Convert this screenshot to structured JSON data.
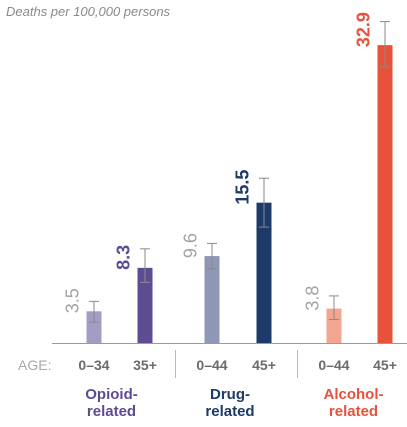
{
  "chart_data": {
    "type": "bar",
    "title": "",
    "unit_label": "Deaths per 100,000 persons",
    "axis_prefix": "AGE:",
    "ylim": [
      0,
      37
    ],
    "grid": false,
    "groups": [
      {
        "name": "Opioid-related",
        "name_lines": [
          "Opioid-",
          "related"
        ],
        "color": "#5d4c91",
        "bars": [
          {
            "age": "0–34",
            "value": 3.5,
            "value_label": "3.5",
            "err": [
              2.3,
              4.6
            ],
            "color": "#a59cc3",
            "emphasis": false
          },
          {
            "age": "35+",
            "value": 8.3,
            "value_label": "8.3",
            "err": [
              6.7,
              10.4
            ],
            "color": "#5d4c91",
            "emphasis": true
          }
        ]
      },
      {
        "name": "Drug-related",
        "name_lines": [
          "Drug-",
          "related"
        ],
        "color": "#1e3a68",
        "bars": [
          {
            "age": "0–44",
            "value": 9.6,
            "value_label": "9.6",
            "err": [
              8.2,
              11.0
            ],
            "color": "#8e97b5",
            "emphasis": false
          },
          {
            "age": "45+",
            "value": 15.5,
            "value_label": "15.5",
            "err": [
              12.8,
              18.2
            ],
            "color": "#1e3a68",
            "emphasis": true
          }
        ]
      },
      {
        "name": "Alcohol-related",
        "name_lines": [
          "Alcohol-",
          "related"
        ],
        "color": "#e8523a",
        "bars": [
          {
            "age": "0–44",
            "value": 3.8,
            "value_label": "3.8",
            "err": [
              2.6,
              5.2
            ],
            "color": "#f2a58f",
            "emphasis": false
          },
          {
            "age": "45+",
            "value": 32.9,
            "value_label": "32.9",
            "err": [
              30.5,
              35.5
            ],
            "color": "#e8523a",
            "emphasis": true
          }
        ]
      }
    ]
  }
}
